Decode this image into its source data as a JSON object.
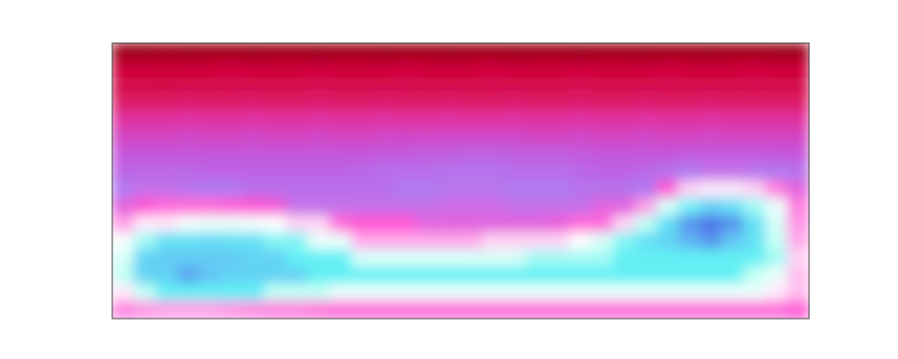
{
  "chart_data": {
    "type": "heatmap",
    "tick_labels": false,
    "zlim": [
      0,
      1
    ],
    "values": [
      [
        0.05,
        0.05,
        0.06,
        0.05,
        0.06,
        0.06,
        0.05,
        0.06,
        0.06,
        0.05,
        0.06,
        0.06,
        0.05,
        0.06,
        0.06,
        0.05,
        0.06,
        0.06,
        0.05,
        0.06,
        0.06,
        0.05,
        0.06,
        0.06,
        0.05,
        0.06,
        0.06,
        0.05,
        0.06,
        0.06,
        0.05,
        0.05
      ],
      [
        0.14,
        0.14,
        0.13,
        0.14,
        0.14,
        0.15,
        0.14,
        0.14,
        0.14,
        0.15,
        0.14,
        0.14,
        0.14,
        0.15,
        0.14,
        0.14,
        0.14,
        0.15,
        0.14,
        0.14,
        0.14,
        0.15,
        0.14,
        0.14,
        0.14,
        0.15,
        0.14,
        0.14,
        0.14,
        0.15,
        0.14,
        0.14
      ],
      [
        0.19,
        0.19,
        0.18,
        0.19,
        0.19,
        0.2,
        0.19,
        0.19,
        0.19,
        0.2,
        0.19,
        0.19,
        0.19,
        0.2,
        0.19,
        0.19,
        0.19,
        0.2,
        0.19,
        0.19,
        0.19,
        0.2,
        0.19,
        0.19,
        0.19,
        0.2,
        0.19,
        0.19,
        0.19,
        0.2,
        0.19,
        0.19
      ],
      [
        0.24,
        0.24,
        0.24,
        0.25,
        0.24,
        0.24,
        0.25,
        0.24,
        0.24,
        0.25,
        0.24,
        0.24,
        0.25,
        0.24,
        0.24,
        0.25,
        0.24,
        0.24,
        0.25,
        0.24,
        0.24,
        0.25,
        0.24,
        0.24,
        0.25,
        0.24,
        0.24,
        0.25,
        0.24,
        0.24,
        0.24,
        0.24
      ],
      [
        0.31,
        0.31,
        0.31,
        0.32,
        0.31,
        0.31,
        0.32,
        0.31,
        0.31,
        0.32,
        0.31,
        0.31,
        0.32,
        0.31,
        0.31,
        0.32,
        0.31,
        0.31,
        0.32,
        0.31,
        0.31,
        0.32,
        0.31,
        0.31,
        0.32,
        0.31,
        0.31,
        0.32,
        0.31,
        0.31,
        0.31,
        0.31
      ],
      [
        0.37,
        0.37,
        0.37,
        0.38,
        0.37,
        0.37,
        0.38,
        0.37,
        0.37,
        0.38,
        0.37,
        0.37,
        0.38,
        0.38,
        0.38,
        0.38,
        0.38,
        0.38,
        0.38,
        0.37,
        0.37,
        0.38,
        0.37,
        0.37,
        0.38,
        0.37,
        0.37,
        0.38,
        0.37,
        0.37,
        0.37,
        0.37
      ],
      [
        0.42,
        0.42,
        0.42,
        0.42,
        0.42,
        0.42,
        0.42,
        0.42,
        0.42,
        0.42,
        0.42,
        0.42,
        0.43,
        0.43,
        0.44,
        0.44,
        0.45,
        0.45,
        0.44,
        0.44,
        0.44,
        0.43,
        0.42,
        0.42,
        0.42,
        0.42,
        0.43,
        0.43,
        0.43,
        0.43,
        0.42,
        0.42
      ],
      [
        0.45,
        0.46,
        0.46,
        0.46,
        0.45,
        0.45,
        0.45,
        0.45,
        0.45,
        0.45,
        0.45,
        0.46,
        0.47,
        0.47,
        0.47,
        0.48,
        0.48,
        0.48,
        0.47,
        0.47,
        0.47,
        0.46,
        0.45,
        0.45,
        0.46,
        0.48,
        0.5,
        0.52,
        0.52,
        0.51,
        0.5,
        0.48
      ],
      [
        0.5,
        0.52,
        0.52,
        0.51,
        0.5,
        0.5,
        0.47,
        0.47,
        0.47,
        0.47,
        0.47,
        0.47,
        0.47,
        0.5,
        0.5,
        0.51,
        0.51,
        0.51,
        0.5,
        0.5,
        0.5,
        0.48,
        0.48,
        0.48,
        0.5,
        0.58,
        0.7,
        0.72,
        0.72,
        0.7,
        0.62,
        0.55
      ],
      [
        0.55,
        0.58,
        0.6,
        0.6,
        0.6,
        0.59,
        0.58,
        0.57,
        0.52,
        0.52,
        0.52,
        0.52,
        0.52,
        0.52,
        0.52,
        0.53,
        0.53,
        0.53,
        0.52,
        0.52,
        0.52,
        0.52,
        0.55,
        0.55,
        0.65,
        0.78,
        0.85,
        0.9,
        0.88,
        0.82,
        0.76,
        0.62
      ],
      [
        0.65,
        0.72,
        0.72,
        0.75,
        0.76,
        0.76,
        0.75,
        0.74,
        0.7,
        0.7,
        0.6,
        0.58,
        0.58,
        0.58,
        0.55,
        0.55,
        0.55,
        0.55,
        0.55,
        0.55,
        0.56,
        0.6,
        0.6,
        0.7,
        0.8,
        0.88,
        0.95,
        0.97,
        0.95,
        0.88,
        0.78,
        0.64
      ],
      [
        0.75,
        0.82,
        0.88,
        0.88,
        0.89,
        0.88,
        0.88,
        0.84,
        0.84,
        0.76,
        0.76,
        0.66,
        0.66,
        0.66,
        0.66,
        0.66,
        0.66,
        0.7,
        0.7,
        0.7,
        0.7,
        0.74,
        0.78,
        0.84,
        0.88,
        0.9,
        0.93,
        0.95,
        0.92,
        0.88,
        0.8,
        0.66
      ],
      [
        0.78,
        0.9,
        0.91,
        0.91,
        0.91,
        0.91,
        0.9,
        0.9,
        0.86,
        0.86,
        0.86,
        0.78,
        0.78,
        0.78,
        0.78,
        0.78,
        0.78,
        0.78,
        0.78,
        0.82,
        0.82,
        0.82,
        0.82,
        0.86,
        0.86,
        0.86,
        0.86,
        0.86,
        0.86,
        0.86,
        0.82,
        0.7
      ],
      [
        0.8,
        0.9,
        0.9,
        0.94,
        0.92,
        0.9,
        0.9,
        0.9,
        0.9,
        0.86,
        0.86,
        0.86,
        0.86,
        0.86,
        0.86,
        0.86,
        0.86,
        0.86,
        0.86,
        0.86,
        0.86,
        0.86,
        0.86,
        0.86,
        0.86,
        0.86,
        0.86,
        0.86,
        0.86,
        0.8,
        0.76,
        0.68
      ],
      [
        0.72,
        0.8,
        0.86,
        0.86,
        0.86,
        0.86,
        0.86,
        0.8,
        0.8,
        0.8,
        0.76,
        0.76,
        0.76,
        0.76,
        0.76,
        0.76,
        0.76,
        0.76,
        0.76,
        0.76,
        0.76,
        0.76,
        0.76,
        0.76,
        0.76,
        0.76,
        0.76,
        0.76,
        0.76,
        0.76,
        0.72,
        0.68
      ],
      [
        0.62,
        0.64,
        0.65,
        0.65,
        0.65,
        0.64,
        0.63,
        0.62,
        0.62,
        0.61,
        0.6,
        0.6,
        0.6,
        0.6,
        0.6,
        0.6,
        0.6,
        0.6,
        0.6,
        0.6,
        0.6,
        0.6,
        0.6,
        0.6,
        0.6,
        0.6,
        0.6,
        0.6,
        0.6,
        0.6,
        0.6,
        0.58
      ]
    ]
  }
}
